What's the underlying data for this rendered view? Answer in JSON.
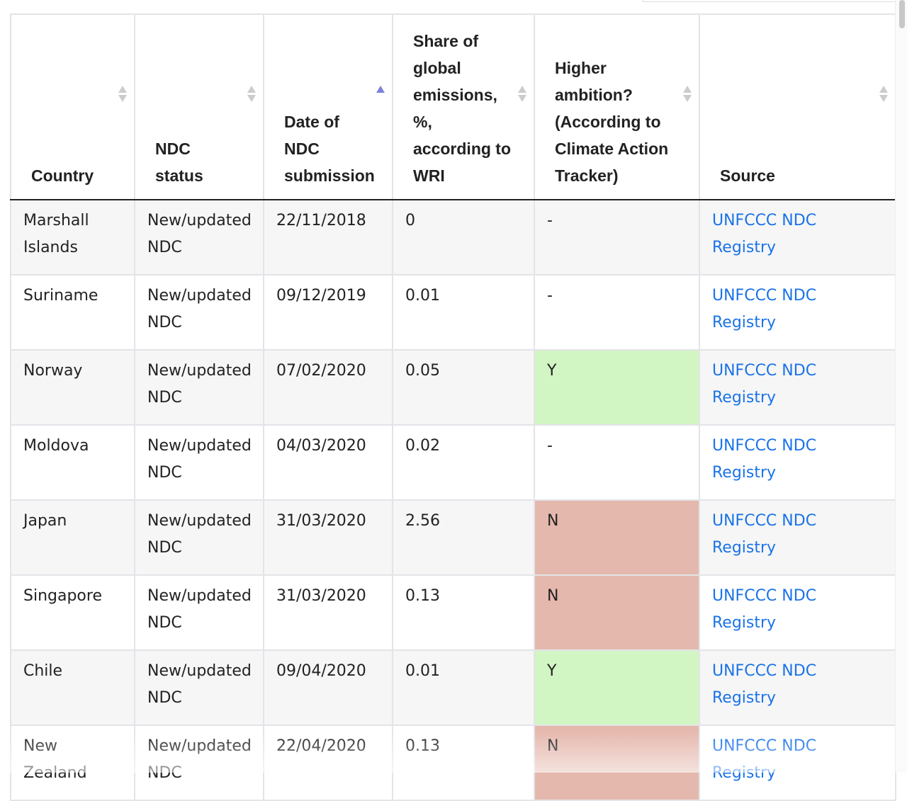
{
  "table": {
    "columns": [
      {
        "label": "Country",
        "sort": "none"
      },
      {
        "label": "NDC status",
        "sort": "none"
      },
      {
        "label": "Date of NDC submission",
        "sort": "ascending"
      },
      {
        "label": "Share of global emissions, %, according to WRI",
        "sort": "none"
      },
      {
        "label": "Higher ambition? (According to Climate Action Tracker)",
        "sort": "none"
      },
      {
        "label": "Source",
        "sort": "none"
      }
    ],
    "rows": [
      {
        "country": "Marshall Islands",
        "status": "New/updated NDC",
        "date": "22/11/2018",
        "share": "0",
        "ambition": "-",
        "source": "UNFCCC NDC Registry"
      },
      {
        "country": "Suriname",
        "status": "New/updated NDC",
        "date": "09/12/2019",
        "share": "0.01",
        "ambition": "-",
        "source": "UNFCCC NDC Registry"
      },
      {
        "country": "Norway",
        "status": "New/updated NDC",
        "date": "07/02/2020",
        "share": "0.05",
        "ambition": "Y",
        "source": "UNFCCC NDC Registry"
      },
      {
        "country": "Moldova",
        "status": "New/updated NDC",
        "date": "04/03/2020",
        "share": "0.02",
        "ambition": "-",
        "source": "UNFCCC NDC Registry"
      },
      {
        "country": "Japan",
        "status": "New/updated NDC",
        "date": "31/03/2020",
        "share": "2.56",
        "ambition": "N",
        "source": "UNFCCC NDC Registry"
      },
      {
        "country": "Singapore",
        "status": "New/updated NDC",
        "date": "31/03/2020",
        "share": "0.13",
        "ambition": "N",
        "source": "UNFCCC NDC Registry"
      },
      {
        "country": "Chile",
        "status": "New/updated NDC",
        "date": "09/04/2020",
        "share": "0.01",
        "ambition": "Y",
        "source": "UNFCCC NDC Registry"
      },
      {
        "country": "New Zealand",
        "status": "New/updated NDC",
        "date": "22/04/2020",
        "share": "0.13",
        "ambition": "N",
        "source": "UNFCCC NDC Registry"
      }
    ]
  },
  "colors": {
    "ambition_yes": "#d2f5c4",
    "ambition_no": "#e5b8ad",
    "link": "#1a73e8",
    "sort_active": "#7b82d9"
  }
}
